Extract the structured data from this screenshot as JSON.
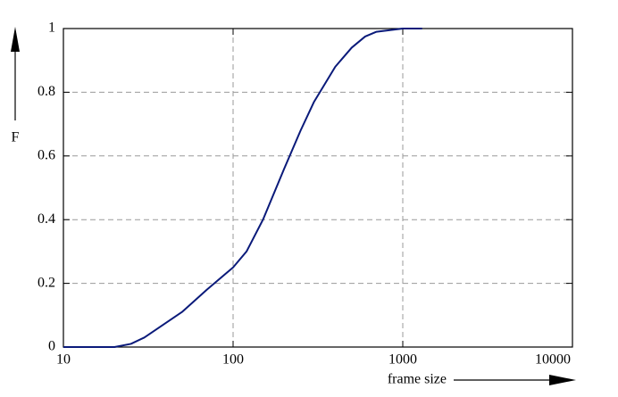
{
  "chart_data": {
    "type": "line",
    "xlabel": "frame size",
    "ylabel": "F",
    "log_x": true,
    "grid": true,
    "x": [
      10,
      20,
      25,
      30,
      40,
      50,
      70,
      100,
      120,
      150,
      200,
      250,
      300,
      400,
      500,
      600,
      700,
      1000,
      1300
    ],
    "series": [
      {
        "color": "#0a1a7a",
        "values": [
          0,
          0,
          0.01,
          0.03,
          0.075,
          0.11,
          0.18,
          0.25,
          0.3,
          0.4,
          0.56,
          0.68,
          0.77,
          0.88,
          0.94,
          0.975,
          0.99,
          1,
          1
        ]
      }
    ],
    "xlim": [
      10,
      10000
    ],
    "xticks": [
      10,
      100,
      1000,
      10000
    ],
    "ylim": [
      0,
      1
    ],
    "yticks": [
      0,
      0.2,
      0.4,
      0.6,
      0.8,
      1
    ]
  }
}
